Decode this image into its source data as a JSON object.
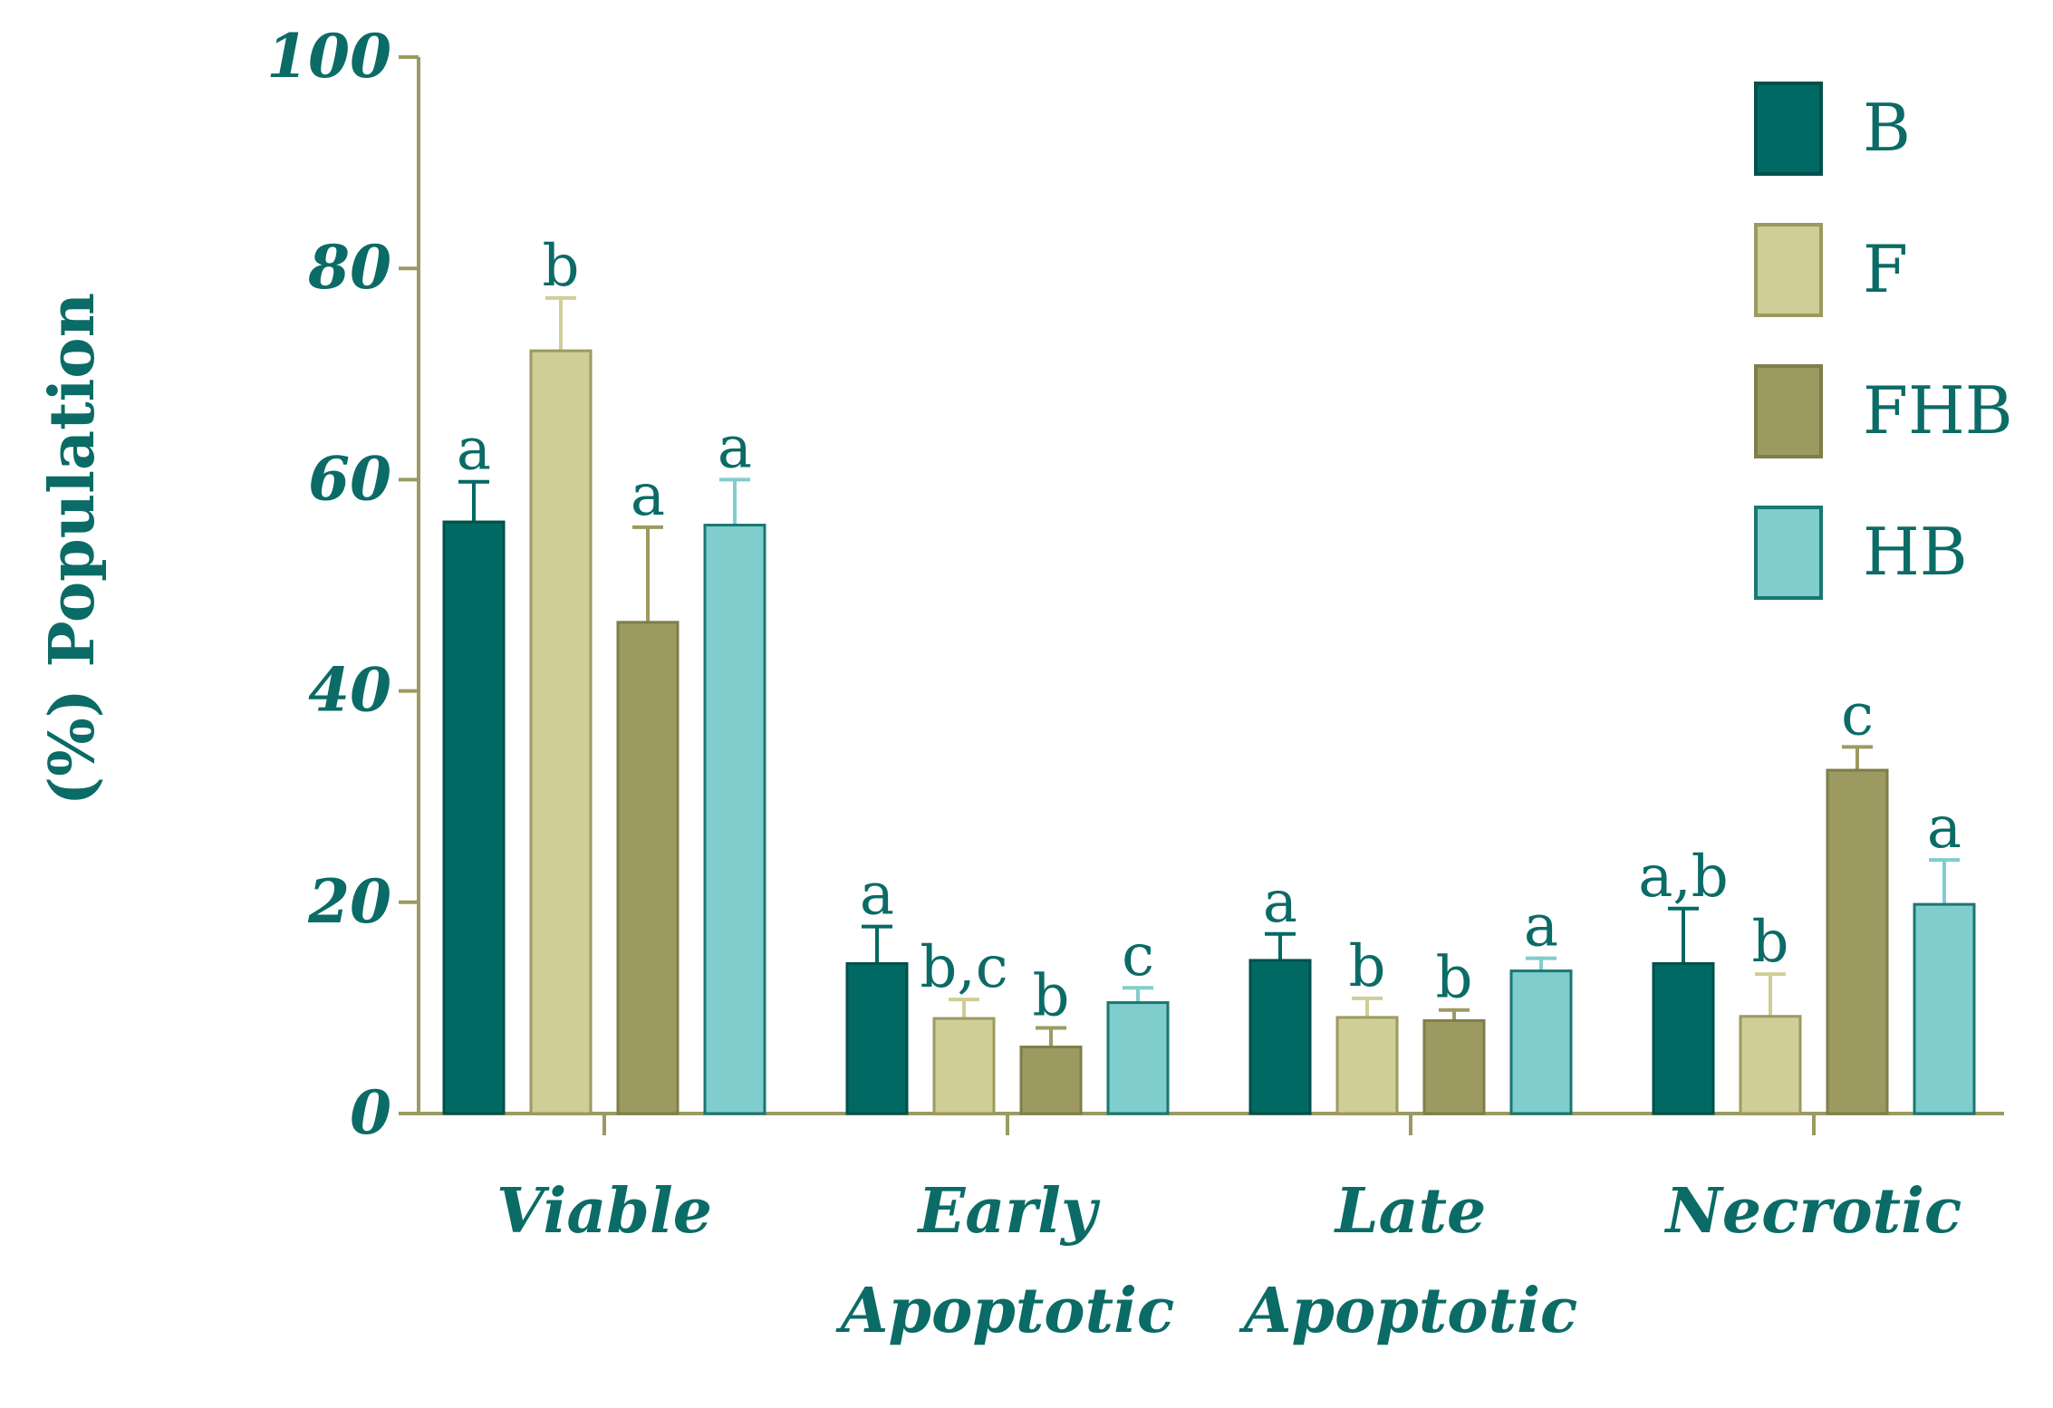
{
  "colors": {
    "axis": "#9b9a62",
    "text": "#0b6b66",
    "series": [
      "#016964",
      "#cfce96",
      "#9c9a61",
      "#80cdcd"
    ],
    "series_stroke": [
      "#01504c",
      "#9c9a61",
      "#7f7d4a",
      "#1a7773"
    ]
  },
  "chart_data": {
    "type": "bar",
    "ylabel": "(%) Population",
    "ylim": [
      0,
      100
    ],
    "yticks": [
      "0",
      "20",
      "40",
      "60",
      "80",
      "100"
    ],
    "categories": [
      [
        "Viable"
      ],
      [
        "Early",
        "Apoptotic"
      ],
      [
        "Late",
        "Apoptotic"
      ],
      [
        "Necrotic"
      ]
    ],
    "series": [
      {
        "name": "B",
        "values": [
          56.0,
          14.2,
          14.5,
          14.2
        ],
        "errors": [
          3.8,
          3.5,
          2.5,
          5.2
        ],
        "labels": [
          "a",
          "a",
          "a",
          "a,b"
        ]
      },
      {
        "name": "F",
        "values": [
          72.2,
          9.0,
          9.1,
          9.2
        ],
        "errors": [
          5.0,
          1.8,
          1.8,
          4.0
        ],
        "labels": [
          "b",
          "b,c",
          "b",
          "b"
        ]
      },
      {
        "name": "FHB",
        "values": [
          46.5,
          6.3,
          8.8,
          32.5
        ],
        "errors": [
          9.0,
          1.8,
          1.0,
          2.2
        ],
        "labels": [
          "a",
          "b",
          "b",
          "c"
        ]
      },
      {
        "name": "HB",
        "values": [
          55.7,
          10.5,
          13.5,
          19.8
        ],
        "errors": [
          4.3,
          1.4,
          1.2,
          4.2
        ],
        "labels": [
          "a",
          "c",
          "a",
          "a"
        ]
      }
    ],
    "legend_position": "top-right",
    "grid": false
  }
}
